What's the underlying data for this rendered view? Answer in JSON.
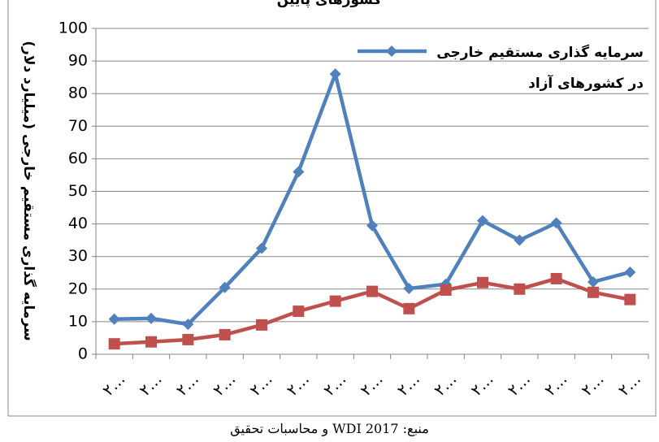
{
  "chart_data": {
    "type": "line",
    "title": "کشورهای پایین",
    "y_label": "سرمایه گذاری مستقیم خارجی (میلیارد دلار)",
    "source": "منبع: WDI 2017 و محاسبات تحقیق",
    "categories": [
      "٢…",
      "٢…",
      "٢…",
      "٢…",
      "٢…",
      "٢…",
      "٢…",
      "٢…",
      "٢…",
      "٢…",
      "٢…",
      "٢…",
      "٢…",
      "٢…",
      "٢…"
    ],
    "series": [
      {
        "name": "سرمایه گذاری مستقیم خارجی در کشورهای آزاد",
        "color": "#4f81bd",
        "marker": "diamond",
        "values": [
          10.8,
          11,
          9.2,
          20.5,
          32.5,
          56,
          86,
          39.5,
          20.2,
          21.5,
          41,
          35,
          40.3,
          22.2,
          25.2
        ]
      },
      {
        "color": "#c0504d",
        "marker": "square",
        "values": [
          3.2,
          3.8,
          4.5,
          6,
          9,
          13.2,
          16.3,
          19.3,
          14,
          19.7,
          22,
          20,
          23.2,
          19,
          16.8
        ]
      }
    ],
    "ylim": [
      0,
      100
    ],
    "yticks": [
      0,
      10,
      20,
      30,
      40,
      50,
      60,
      70,
      80,
      90,
      100
    ],
    "grid": true
  }
}
